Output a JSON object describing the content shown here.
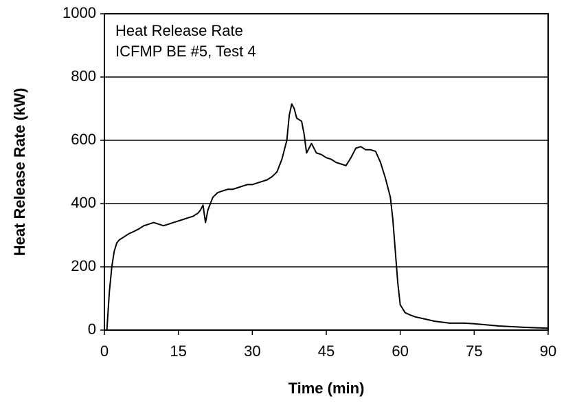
{
  "chart_data": {
    "type": "line",
    "annotations": [
      "Heat Release Rate",
      "ICFMP BE #5, Test 4"
    ],
    "xlabel": "Time (min)",
    "ylabel": "Heat Release Rate (kW)",
    "x": [
      0.5,
      1,
      1.5,
      2,
      2.5,
      3,
      4,
      5,
      6,
      7,
      8,
      9,
      10,
      11,
      12,
      13,
      14,
      15,
      16,
      17,
      18,
      19,
      19.5,
      20,
      20.5,
      21,
      22,
      23,
      24,
      25,
      26,
      27,
      28,
      29,
      30,
      31,
      32,
      33,
      34,
      35,
      36,
      37,
      37.5,
      38,
      38.5,
      39,
      40,
      40.5,
      41,
      42,
      43,
      44,
      45,
      46,
      47,
      48,
      49,
      50,
      51,
      52,
      53,
      54,
      55,
      56,
      57,
      58,
      58.5,
      59,
      59.5,
      60,
      61,
      62,
      63,
      65,
      67,
      70,
      73,
      75,
      80,
      85,
      90
    ],
    "series": [
      {
        "name": "Heat Release Rate",
        "color": "#000000",
        "values": [
          0,
          120,
          200,
          250,
          275,
          285,
          295,
          305,
          312,
          320,
          330,
          335,
          340,
          335,
          330,
          335,
          340,
          345,
          350,
          355,
          360,
          370,
          380,
          395,
          340,
          380,
          420,
          435,
          440,
          445,
          445,
          450,
          455,
          460,
          460,
          465,
          470,
          475,
          485,
          500,
          540,
          600,
          680,
          715,
          700,
          670,
          660,
          620,
          560,
          590,
          560,
          555,
          545,
          540,
          530,
          525,
          520,
          545,
          575,
          580,
          570,
          570,
          565,
          530,
          480,
          420,
          350,
          250,
          150,
          80,
          55,
          48,
          42,
          35,
          28,
          22,
          22,
          20,
          13,
          9,
          6
        ]
      }
    ],
    "xlim": [
      0,
      90
    ],
    "xticks": [
      0,
      15,
      30,
      45,
      60,
      75,
      90
    ],
    "ylim": [
      0,
      1000
    ],
    "yticks": [
      0,
      200,
      400,
      600,
      800,
      1000
    ],
    "grid": "y"
  }
}
